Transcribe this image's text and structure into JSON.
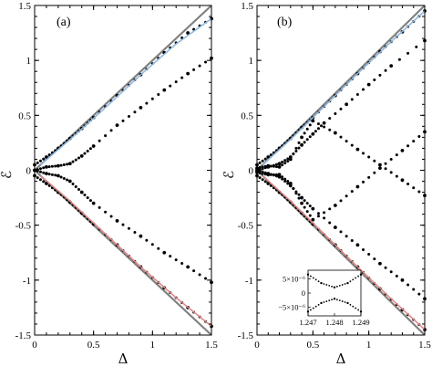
{
  "chart_data": [
    {
      "panel_label": "(a)",
      "type": "line",
      "xlabel": "Δ",
      "ylabel": "ℰ",
      "xlim": [
        0,
        1.5
      ],
      "ylim": [
        -1.5,
        1.5
      ],
      "xticks": [
        "0",
        "0.5",
        "1",
        "1.5"
      ],
      "yticks": [
        "1.5",
        "1",
        "0.5",
        "0",
        "-0.5",
        "-1",
        "-1.5"
      ],
      "ytick_values": [
        1.5,
        1,
        0.5,
        0,
        -0.5,
        -1,
        -1.5
      ],
      "xtick_values": [
        0,
        0.5,
        1,
        1.5
      ],
      "grid": false,
      "colors": {
        "bound": "#808080",
        "dots": "#000000",
        "upper_curve": "#8fb8e0",
        "lower_curve": "#e08a8a"
      },
      "series": [
        {
          "style": "bound",
          "x": [
            0,
            1.5
          ],
          "y": [
            0,
            1.5
          ]
        },
        {
          "style": "bound",
          "x": [
            0,
            1.5
          ],
          "y": [
            0,
            -1.5
          ]
        },
        {
          "style": "dots",
          "x": [
            0,
            0.1,
            0.2,
            0.3,
            0.4,
            0.5,
            0.7,
            0.9,
            1.1,
            1.3,
            1.5
          ],
          "y": [
            0.05,
            0.12,
            0.2,
            0.29,
            0.38,
            0.48,
            0.68,
            0.87,
            1.07,
            1.25,
            1.38
          ]
        },
        {
          "style": "dots",
          "x": [
            0,
            0.1,
            0.2,
            0.3,
            0.4,
            0.5,
            0.7,
            0.9,
            1.1,
            1.3,
            1.5
          ],
          "y": [
            0.0,
            0.03,
            0.04,
            0.06,
            0.13,
            0.22,
            0.41,
            0.57,
            0.73,
            0.88,
            1.02
          ]
        },
        {
          "style": "dots",
          "x": [
            0,
            0.1,
            0.2,
            0.3,
            0.4,
            0.5,
            0.7,
            0.9,
            1.1,
            1.3,
            1.5
          ],
          "y": [
            0.0,
            -0.03,
            -0.05,
            -0.1,
            -0.2,
            -0.3,
            -0.46,
            -0.6,
            -0.75,
            -0.88,
            -1.02
          ]
        },
        {
          "style": "dots",
          "x": [
            0,
            0.1,
            0.2,
            0.3,
            0.4,
            0.5,
            0.7,
            0.9,
            1.1,
            1.3,
            1.5
          ],
          "y": [
            -0.05,
            -0.12,
            -0.2,
            -0.29,
            -0.39,
            -0.49,
            -0.68,
            -0.88,
            -1.07,
            -1.25,
            -1.42
          ]
        },
        {
          "style": "upper_curve",
          "x": [
            0.05,
            0.3,
            0.6,
            0.9,
            1.2,
            1.5
          ],
          "y": [
            0.05,
            0.28,
            0.57,
            0.87,
            1.15,
            1.38
          ]
        },
        {
          "style": "lower_curve",
          "x": [
            0.05,
            0.3,
            0.6,
            0.9,
            1.2,
            1.5
          ],
          "y": [
            -0.05,
            -0.28,
            -0.58,
            -0.88,
            -1.16,
            -1.42
          ]
        }
      ]
    },
    {
      "panel_label": "(b)",
      "type": "line",
      "xlabel": "Δ",
      "ylabel": "ℰ",
      "xlim": [
        0,
        1.5
      ],
      "ylim": [
        -1.5,
        1.5
      ],
      "xticks": [
        "0",
        "0.5",
        "1",
        "1.5"
      ],
      "yticks": [
        "1.5",
        "1",
        "0.5",
        "0",
        "-0.5",
        "-1",
        "-1.5"
      ],
      "ytick_values": [
        1.5,
        1,
        0.5,
        0,
        -0.5,
        -1,
        -1.5
      ],
      "xtick_values": [
        0,
        0.5,
        1,
        1.5
      ],
      "grid": false,
      "colors": {
        "bound": "#808080",
        "dots": "#000000",
        "upper_curve": "#8fb8e0",
        "lower_curve": "#e08a8a"
      },
      "series": [
        {
          "style": "bound",
          "x": [
            0,
            1.5
          ],
          "y": [
            0,
            1.5
          ]
        },
        {
          "style": "bound",
          "x": [
            0,
            1.5
          ],
          "y": [
            0,
            -1.5
          ]
        },
        {
          "style": "dots",
          "x": [
            0,
            0.1,
            0.2,
            0.3,
            0.4,
            0.5,
            0.7,
            0.9,
            1.1,
            1.3,
            1.5
          ],
          "y": [
            0.05,
            0.12,
            0.2,
            0.29,
            0.39,
            0.48,
            0.68,
            0.88,
            1.08,
            1.26,
            1.45
          ]
        },
        {
          "style": "dots",
          "x": [
            0,
            0.1,
            0.2,
            0.3,
            0.4,
            0.5,
            0.6,
            0.8,
            1.0,
            1.2,
            1.5
          ],
          "y": [
            0.0,
            0.03,
            0.06,
            0.12,
            0.23,
            0.33,
            0.43,
            0.6,
            0.78,
            0.95,
            1.18
          ]
        },
        {
          "style": "dots",
          "x": [
            0,
            0.1,
            0.2,
            0.3,
            0.4,
            0.5,
            0.7,
            0.9,
            1.1,
            1.3,
            1.5
          ],
          "y": [
            0.02,
            0.04,
            0.03,
            0.1,
            0.3,
            0.45,
            0.34,
            0.19,
            0.05,
            -0.09,
            -0.23
          ]
        },
        {
          "style": "dots",
          "x": [
            0,
            0.1,
            0.2,
            0.3,
            0.4,
            0.5,
            0.7,
            0.9,
            1.1,
            1.3,
            1.5
          ],
          "y": [
            -0.02,
            -0.04,
            -0.04,
            -0.12,
            -0.3,
            -0.45,
            -0.32,
            -0.15,
            0.02,
            0.18,
            0.35
          ]
        },
        {
          "style": "dots",
          "x": [
            0,
            0.1,
            0.2,
            0.3,
            0.4,
            0.5,
            0.7,
            0.9,
            1.1,
            1.3,
            1.5
          ],
          "y": [
            0.0,
            -0.03,
            -0.06,
            -0.14,
            -0.25,
            -0.35,
            -0.52,
            -0.68,
            -0.85,
            -1.0,
            -1.17
          ]
        },
        {
          "style": "dots",
          "x": [
            0,
            0.1,
            0.2,
            0.3,
            0.4,
            0.5,
            0.7,
            0.9,
            1.1,
            1.3,
            1.5
          ],
          "y": [
            -0.05,
            -0.12,
            -0.2,
            -0.29,
            -0.39,
            -0.49,
            -0.68,
            -0.88,
            -1.08,
            -1.27,
            -1.45
          ]
        },
        {
          "style": "upper_curve",
          "x": [
            0.05,
            0.3,
            0.6,
            0.9,
            1.2,
            1.5
          ],
          "y": [
            0.05,
            0.28,
            0.58,
            0.88,
            1.17,
            1.45
          ]
        },
        {
          "style": "lower_curve",
          "x": [
            0.05,
            0.3,
            0.6,
            0.9,
            1.2,
            1.5
          ],
          "y": [
            -0.05,
            -0.28,
            -0.58,
            -0.88,
            -1.17,
            -1.45
          ]
        }
      ],
      "inset": {
        "xlim": [
          1.247,
          1.249
        ],
        "ylim": [
          -8e-06,
          8e-06
        ],
        "xticks": [
          "1.247",
          "1.248",
          "1.249"
        ],
        "xtick_values": [
          1.247,
          1.248,
          1.249
        ],
        "yticks": [
          "5×10⁻⁶",
          "0",
          "−5×10⁻⁶"
        ],
        "ytick_values": [
          5e-06,
          0,
          -5e-06
        ],
        "series": [
          {
            "style": "dots",
            "x": [
              1.247,
              1.2475,
              1.248,
              1.2485,
              1.249
            ],
            "y": [
              6.5e-06,
              3.5e-06,
              2e-06,
              3.5e-06,
              6.5e-06
            ]
          },
          {
            "style": "dots",
            "x": [
              1.247,
              1.2475,
              1.248,
              1.2485,
              1.249
            ],
            "y": [
              -6.5e-06,
              -3.5e-06,
              -2e-06,
              -3.5e-06,
              -6.5e-06
            ]
          }
        ]
      }
    }
  ]
}
